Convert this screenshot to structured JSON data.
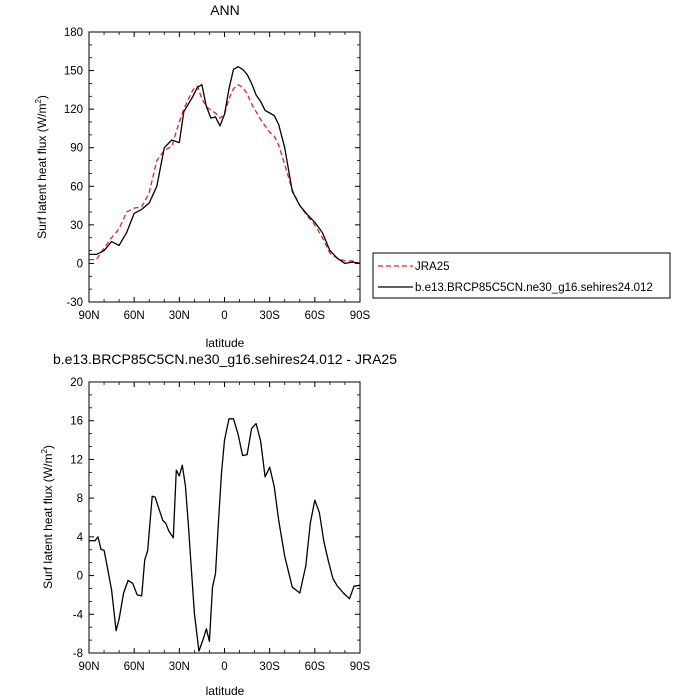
{
  "chart_data": [
    {
      "type": "line",
      "title": "ANN",
      "xlabel": "latitude",
      "ylabel": "Surf latent heat flux (W/m²)",
      "ylabel_main": "Surf latent heat flux (W/m",
      "ylabel_sup": "2",
      "ylabel_tail": ")",
      "xlim": [
        90,
        -90
      ],
      "ylim": [
        -30,
        180
      ],
      "xticks": [
        90,
        60,
        30,
        0,
        -30,
        -60,
        -90
      ],
      "xtick_labels": [
        "90N",
        "60N",
        "30N",
        "0",
        "30S",
        "60S",
        "90S"
      ],
      "yticks": [
        -30,
        0,
        30,
        60,
        90,
        120,
        150,
        180
      ],
      "ytick_labels": [
        "-30",
        "0",
        "30",
        "60",
        "90",
        "120",
        "150",
        "180"
      ],
      "legend_position": "right",
      "series": [
        {
          "name": "JRA25",
          "color": "#e8211c",
          "dash": "dashed",
          "x": [
            90,
            85,
            80,
            75,
            70,
            65,
            60,
            55,
            50,
            45,
            40,
            35,
            30,
            27,
            24,
            21,
            18,
            15,
            12,
            9,
            6,
            3,
            0,
            -3,
            -6,
            -9,
            -12,
            -15,
            -18,
            -21,
            -24,
            -27,
            -30,
            -33,
            -36,
            -40,
            -45,
            -50,
            -55,
            -60,
            -65,
            -70,
            -75,
            -80,
            -85,
            -90
          ],
          "y": [
            3,
            3,
            12,
            20,
            27,
            40,
            43,
            44,
            55,
            80,
            88,
            91,
            110,
            120,
            128,
            135,
            138,
            128,
            122,
            119,
            117,
            113,
            116,
            128,
            136,
            139,
            137,
            132,
            124,
            118,
            112,
            107,
            102,
            99,
            92,
            77,
            57,
            45,
            37,
            30,
            20,
            8,
            4,
            2,
            2,
            0
          ]
        },
        {
          "name": "b.e13.BRCP85C5CN.ne30_g16.sehires24.012",
          "color": "#000000",
          "dash": "solid",
          "x": [
            90,
            85,
            80,
            75,
            70,
            65,
            60,
            55,
            50,
            45,
            40,
            35,
            30,
            27,
            24,
            21,
            18,
            15,
            12,
            9,
            6,
            3,
            0,
            -3,
            -6,
            -9,
            -12,
            -15,
            -18,
            -21,
            -24,
            -27,
            -30,
            -33,
            -36,
            -40,
            -45,
            -50,
            -55,
            -60,
            -65,
            -70,
            -75,
            -80,
            -85,
            -90
          ],
          "y": [
            7,
            7,
            10,
            17,
            14,
            24,
            39,
            42,
            47,
            60,
            90,
            96,
            94,
            118,
            124,
            130,
            137,
            139,
            122,
            113,
            114,
            107,
            116,
            136,
            151,
            153,
            151,
            147,
            140,
            131,
            126,
            119,
            117,
            115,
            108,
            90,
            56,
            45,
            38,
            32,
            24,
            10,
            4,
            0,
            1,
            0
          ]
        }
      ]
    },
    {
      "type": "line",
      "title": "b.e13.BRCP85C5CN.ne30_g16.sehires24.012 - JRA25",
      "xlabel": "latitude",
      "ylabel": "Surf latent heat flux (W/m²)",
      "ylabel_main": "Surf latent heat flux (W/m",
      "ylabel_sup": "2",
      "ylabel_tail": ")",
      "xlim": [
        90,
        -90
      ],
      "ylim": [
        -8,
        20
      ],
      "xticks": [
        90,
        60,
        30,
        0,
        -30,
        -60,
        -90
      ],
      "xtick_labels": [
        "90N",
        "60N",
        "30N",
        "0",
        "30S",
        "60S",
        "90S"
      ],
      "yticks": [
        -8,
        -4,
        0,
        4,
        8,
        12,
        16,
        20
      ],
      "ytick_labels": [
        "-8",
        "-4",
        "0",
        "4",
        "8",
        "12",
        "16",
        "20"
      ],
      "series": [
        {
          "color": "#000000",
          "x": [
            90,
            86,
            84,
            82,
            80,
            78,
            75,
            72,
            70,
            67,
            64,
            61,
            58,
            55,
            53,
            51,
            48,
            46,
            44,
            41,
            39,
            37,
            34,
            32,
            30,
            28,
            26,
            24,
            22,
            20,
            17,
            14,
            12,
            10,
            8,
            6,
            4,
            2,
            0,
            -3,
            -6,
            -9,
            -12,
            -15,
            -18,
            -21,
            -24,
            -27,
            -30,
            -33,
            -36,
            -40,
            -45,
            -50,
            -54,
            -57,
            -60,
            -63,
            -66,
            -69,
            -72,
            -75,
            -79,
            -83,
            -86,
            -90
          ],
          "y": [
            3.6,
            3.6,
            4.0,
            2.7,
            2.6,
            1.0,
            -1.5,
            -5.7,
            -4.5,
            -1.8,
            -0.5,
            -0.8,
            -2.0,
            -2.1,
            1.6,
            2.6,
            8.2,
            8.1,
            7.1,
            5.7,
            5.4,
            4.6,
            3.9,
            10.9,
            10.3,
            11.4,
            9.3,
            5.2,
            0.6,
            -3.9,
            -7.8,
            -6.5,
            -5.5,
            -6.8,
            -1.2,
            0.2,
            5.6,
            10.6,
            14.0,
            16.2,
            16.2,
            14.6,
            12.4,
            12.5,
            15.2,
            15.7,
            13.9,
            10.2,
            11.2,
            9.2,
            5.7,
            2.0,
            -1.2,
            -1.8,
            1.0,
            5.4,
            7.8,
            6.5,
            3.5,
            1.5,
            -0.3,
            -1.1,
            -1.8,
            -2.4,
            -1.1,
            -1.0
          ]
        }
      ]
    }
  ]
}
